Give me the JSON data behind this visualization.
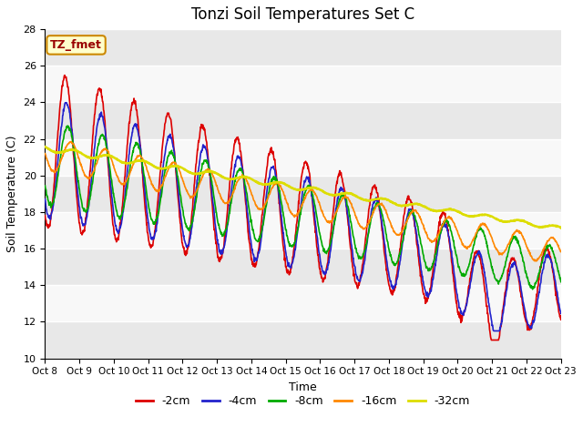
{
  "title": "Tonzi Soil Temperatures Set C",
  "xlabel": "Time",
  "ylabel": "Soil Temperature (C)",
  "ylim": [
    10,
    28
  ],
  "xlim": [
    0,
    360
  ],
  "annotation_text": "TZ_fmet",
  "annotation_bg": "#ffffcc",
  "annotation_border": "#cc8800",
  "annotation_text_color": "#990000",
  "bg_color": "#ffffff",
  "band_color": "#e0e0e0",
  "series_colors": [
    "#dd0000",
    "#2222cc",
    "#00aa00",
    "#ff8800",
    "#dddd00"
  ],
  "series_labels": [
    "-2cm",
    "-4cm",
    "-8cm",
    "-16cm",
    "-32cm"
  ],
  "series_linewidths": [
    1.2,
    1.2,
    1.2,
    1.2,
    1.8
  ],
  "tick_labels": [
    "Oct 8",
    "Oct 9",
    "Oct 10",
    "Oct 11",
    "Oct 12",
    "Oct 13",
    "Oct 14",
    "Oct 15",
    "Oct 16",
    "Oct 17",
    "Oct 18",
    "Oct 19",
    "Oct 20",
    "Oct 21",
    "Oct 22",
    "Oct 23"
  ],
  "tick_positions": [
    0,
    24,
    48,
    72,
    96,
    120,
    144,
    168,
    192,
    216,
    240,
    264,
    288,
    312,
    336,
    360
  ],
  "yticks": [
    10,
    12,
    14,
    16,
    18,
    20,
    22,
    24,
    26,
    28
  ]
}
